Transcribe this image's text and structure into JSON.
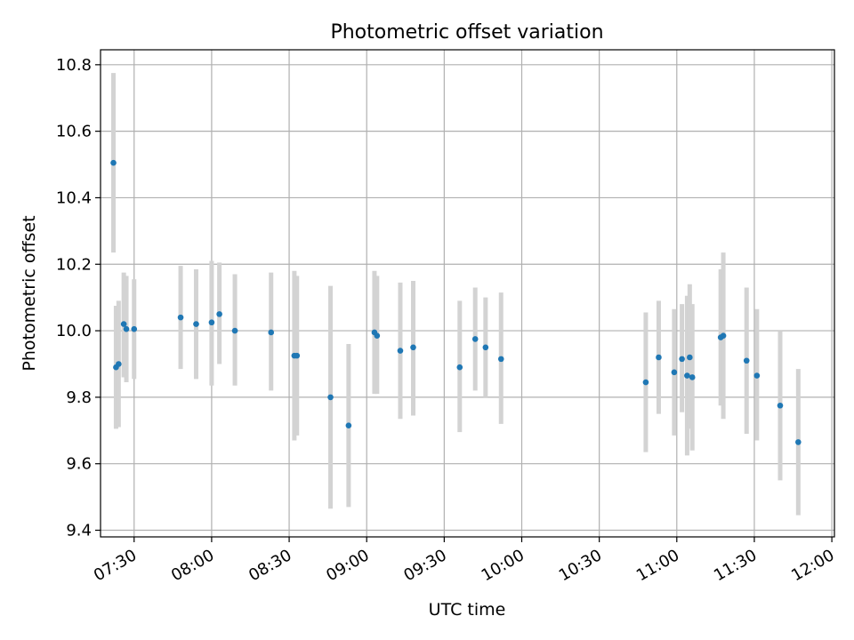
{
  "chart_data": {
    "type": "scatter",
    "title": "Photometric offset variation",
    "xlabel": "UTC time",
    "ylabel": "Photometric offset",
    "x_ticks": [
      "07:30",
      "08:00",
      "08:30",
      "09:00",
      "09:30",
      "10:00",
      "10:30",
      "11:00",
      "11:30",
      "12:00"
    ],
    "y_ticks": [
      "9.4",
      "9.6",
      "9.8",
      "10.0",
      "10.2",
      "10.4",
      "10.6",
      "10.8"
    ],
    "xlim": [
      "07:17",
      "12:01"
    ],
    "ylim": [
      9.38,
      10.845
    ],
    "grid": true,
    "colors": {
      "marker": "#1f77b4",
      "errorbar": "#d3d3d3",
      "grid": "#b0b0b0"
    },
    "series": [
      {
        "points": [
          {
            "x": "07:22",
            "y": 10.505,
            "lo": 10.235,
            "hi": 10.775
          },
          {
            "x": "07:23",
            "y": 9.89,
            "lo": 9.705,
            "hi": 10.075
          },
          {
            "x": "07:24",
            "y": 9.9,
            "lo": 9.71,
            "hi": 10.09
          },
          {
            "x": "07:26",
            "y": 10.02,
            "lo": 9.86,
            "hi": 10.175
          },
          {
            "x": "07:27",
            "y": 10.005,
            "lo": 9.845,
            "hi": 10.165
          },
          {
            "x": "07:30",
            "y": 10.005,
            "lo": 9.855,
            "hi": 10.155
          },
          {
            "x": "07:48",
            "y": 10.04,
            "lo": 9.885,
            "hi": 10.195
          },
          {
            "x": "07:54",
            "y": 10.02,
            "lo": 9.855,
            "hi": 10.185
          },
          {
            "x": "08:00",
            "y": 10.025,
            "lo": 9.835,
            "hi": 10.21
          },
          {
            "x": "08:03",
            "y": 10.05,
            "lo": 9.9,
            "hi": 10.205
          },
          {
            "x": "08:09",
            "y": 10.0,
            "lo": 9.835,
            "hi": 10.17
          },
          {
            "x": "08:23",
            "y": 9.995,
            "lo": 9.82,
            "hi": 10.175
          },
          {
            "x": "08:32",
            "y": 9.925,
            "lo": 9.67,
            "hi": 10.18
          },
          {
            "x": "08:33",
            "y": 9.925,
            "lo": 9.685,
            "hi": 10.165
          },
          {
            "x": "08:46",
            "y": 9.8,
            "lo": 9.465,
            "hi": 10.135
          },
          {
            "x": "08:53",
            "y": 9.715,
            "lo": 9.47,
            "hi": 9.96
          },
          {
            "x": "09:03",
            "y": 9.995,
            "lo": 9.81,
            "hi": 10.18
          },
          {
            "x": "09:04",
            "y": 9.985,
            "lo": 9.81,
            "hi": 10.165
          },
          {
            "x": "09:13",
            "y": 9.94,
            "lo": 9.735,
            "hi": 10.145
          },
          {
            "x": "09:18",
            "y": 9.95,
            "lo": 9.745,
            "hi": 10.15
          },
          {
            "x": "09:36",
            "y": 9.89,
            "lo": 9.695,
            "hi": 10.09
          },
          {
            "x": "09:42",
            "y": 9.975,
            "lo": 9.82,
            "hi": 10.13
          },
          {
            "x": "09:46",
            "y": 9.95,
            "lo": 9.8,
            "hi": 10.1
          },
          {
            "x": "09:52",
            "y": 9.915,
            "lo": 9.72,
            "hi": 10.115
          },
          {
            "x": "10:48",
            "y": 9.845,
            "lo": 9.635,
            "hi": 10.055
          },
          {
            "x": "10:53",
            "y": 9.92,
            "lo": 9.75,
            "hi": 10.09
          },
          {
            "x": "10:59",
            "y": 9.875,
            "lo": 9.685,
            "hi": 10.065
          },
          {
            "x": "11:02",
            "y": 9.915,
            "lo": 9.755,
            "hi": 10.08
          },
          {
            "x": "11:04",
            "y": 9.865,
            "lo": 9.625,
            "hi": 10.105
          },
          {
            "x": "11:05",
            "y": 9.92,
            "lo": 9.705,
            "hi": 10.14
          },
          {
            "x": "11:06",
            "y": 9.86,
            "lo": 9.64,
            "hi": 10.08
          },
          {
            "x": "11:17",
            "y": 9.98,
            "lo": 9.775,
            "hi": 10.185
          },
          {
            "x": "11:18",
            "y": 9.985,
            "lo": 9.735,
            "hi": 10.235
          },
          {
            "x": "11:27",
            "y": 9.91,
            "lo": 9.69,
            "hi": 10.13
          },
          {
            "x": "11:31",
            "y": 9.865,
            "lo": 9.67,
            "hi": 10.065
          },
          {
            "x": "11:40",
            "y": 9.775,
            "lo": 9.55,
            "hi": 10.0
          },
          {
            "x": "11:47",
            "y": 9.665,
            "lo": 9.445,
            "hi": 9.885
          }
        ]
      }
    ]
  }
}
